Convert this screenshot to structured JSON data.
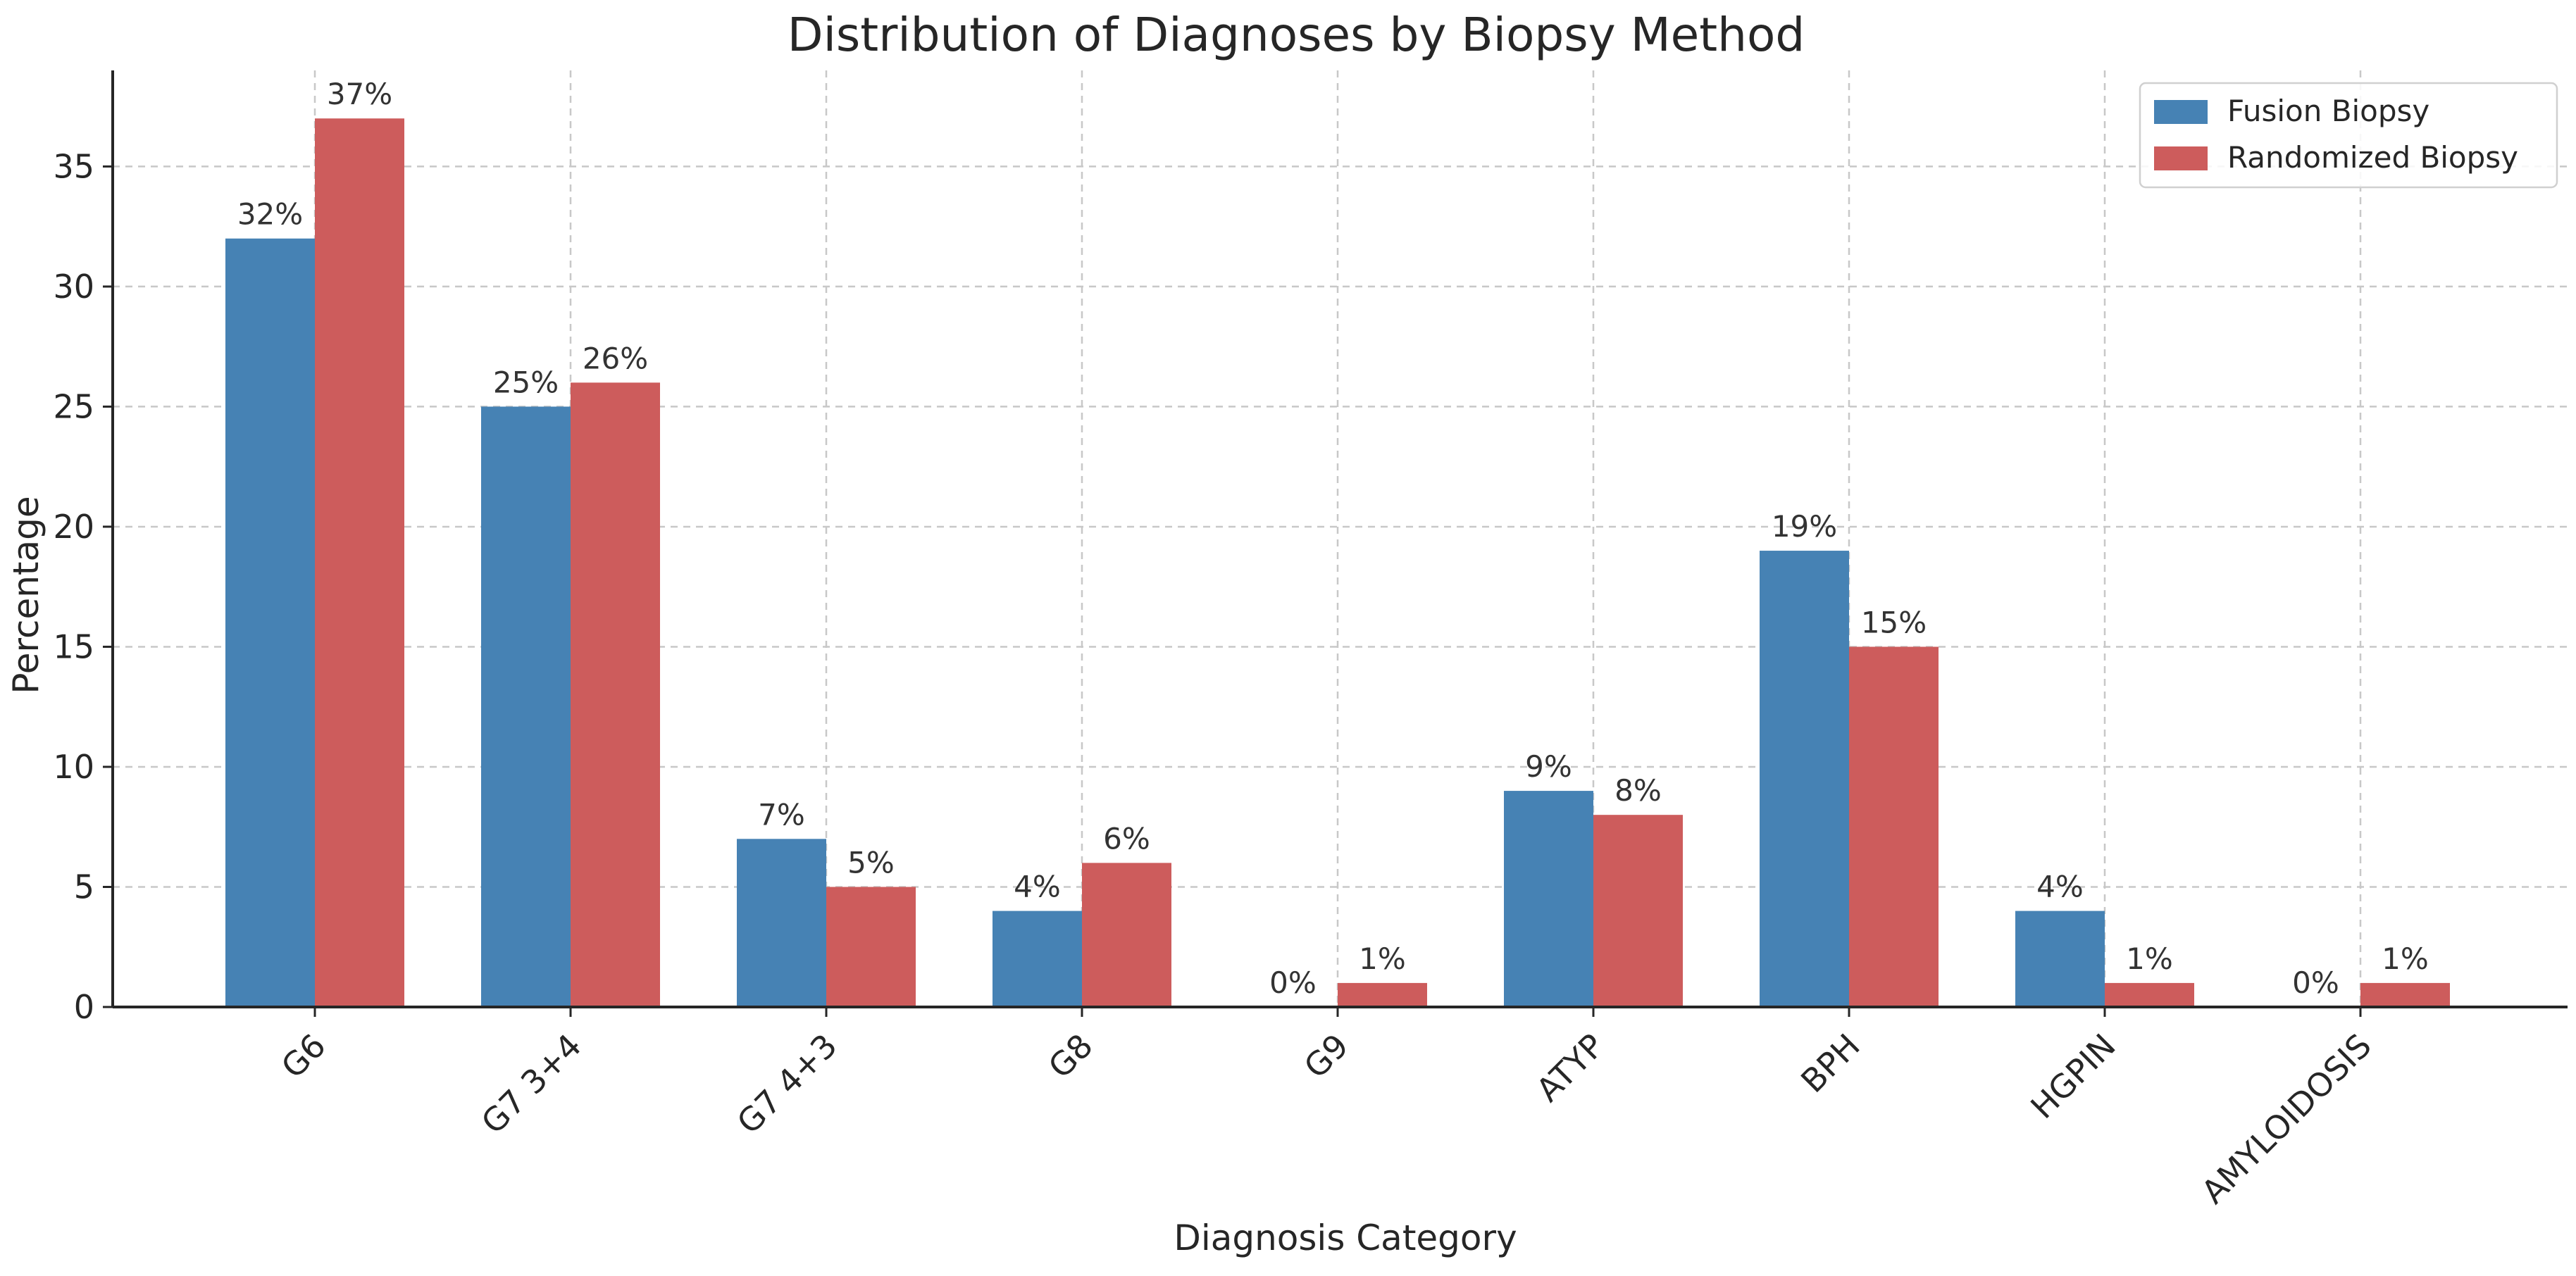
{
  "chart_data": {
    "type": "bar",
    "title": "Distribution of Diagnoses by Biopsy Method",
    "xlabel": "Diagnosis Category",
    "ylabel": "Percentage",
    "ylim": [
      0,
      39
    ],
    "yticks": [
      0,
      5,
      10,
      15,
      20,
      25,
      30,
      35
    ],
    "grid": true,
    "legend_position": "top-right",
    "categories": [
      "G6",
      "G7 3+4",
      "G7 4+3",
      "G8",
      "G9",
      "ATYP",
      "BPH",
      "HGPIN",
      "AMYLOIDOSIS"
    ],
    "series": [
      {
        "name": "Fusion Biopsy",
        "color": "#4682b4",
        "values": [
          32,
          25,
          7,
          4,
          0,
          9,
          19,
          4,
          0
        ],
        "labels": [
          "32%",
          "25%",
          "7%",
          "4%",
          "0%",
          "9%",
          "19%",
          "4%",
          "0%"
        ]
      },
      {
        "name": "Randomized Biopsy",
        "color": "#cd5c5c",
        "values": [
          37,
          26,
          5,
          6,
          1,
          8,
          15,
          1,
          1
        ],
        "labels": [
          "37%",
          "26%",
          "5%",
          "6%",
          "1%",
          "8%",
          "15%",
          "1%",
          "1%"
        ]
      }
    ]
  }
}
